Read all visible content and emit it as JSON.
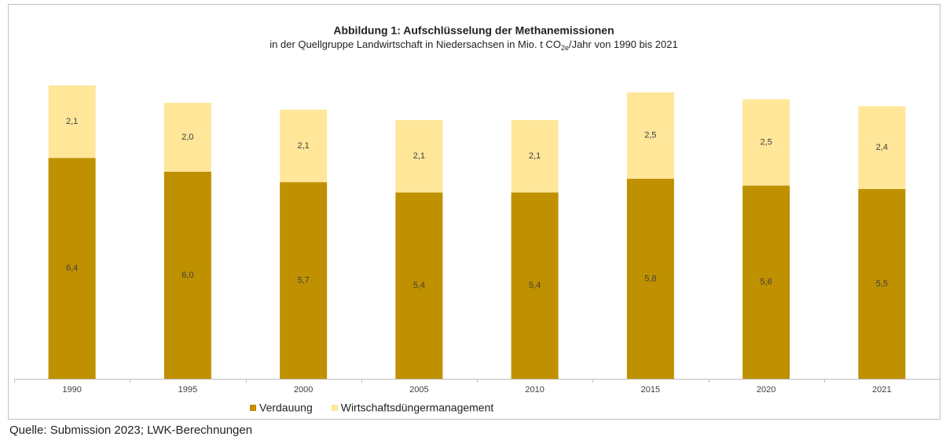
{
  "chart_data": {
    "type": "stacked_bar",
    "title": "Abbildung 1: Aufschlüsselung der Methanemissionen",
    "subtitle": [
      "in der Quellgruppe Landwirtschaft in Niedersachsen in Mio. t CO",
      "2e",
      "/Jahr von 1990 bis 2021"
    ],
    "categories": [
      "1990",
      "1995",
      "2000",
      "2005",
      "2010",
      "2015",
      "2020",
      "2021"
    ],
    "series": [
      {
        "name": "Verdauung",
        "color": "#bf9000",
        "values": [
          6.4,
          6.0,
          5.7,
          5.4,
          5.4,
          5.8,
          5.6,
          5.5
        ],
        "value_labels": [
          "6,4",
          "6,0",
          "5,7",
          "5,4",
          "5,4",
          "5,8",
          "5,6",
          "5,5"
        ]
      },
      {
        "name": "Wirtschaftsdüngermanagement",
        "color": "#ffe699",
        "values": [
          2.1,
          2.0,
          2.1,
          2.1,
          2.1,
          2.5,
          2.5,
          2.4
        ],
        "value_labels": [
          "2,1",
          "2,0",
          "2,1",
          "2,1",
          "2,1",
          "2,5",
          "2,5",
          "2,4"
        ]
      }
    ],
    "source": "Quelle: Submission 2023; LWK-Berechnungen"
  }
}
